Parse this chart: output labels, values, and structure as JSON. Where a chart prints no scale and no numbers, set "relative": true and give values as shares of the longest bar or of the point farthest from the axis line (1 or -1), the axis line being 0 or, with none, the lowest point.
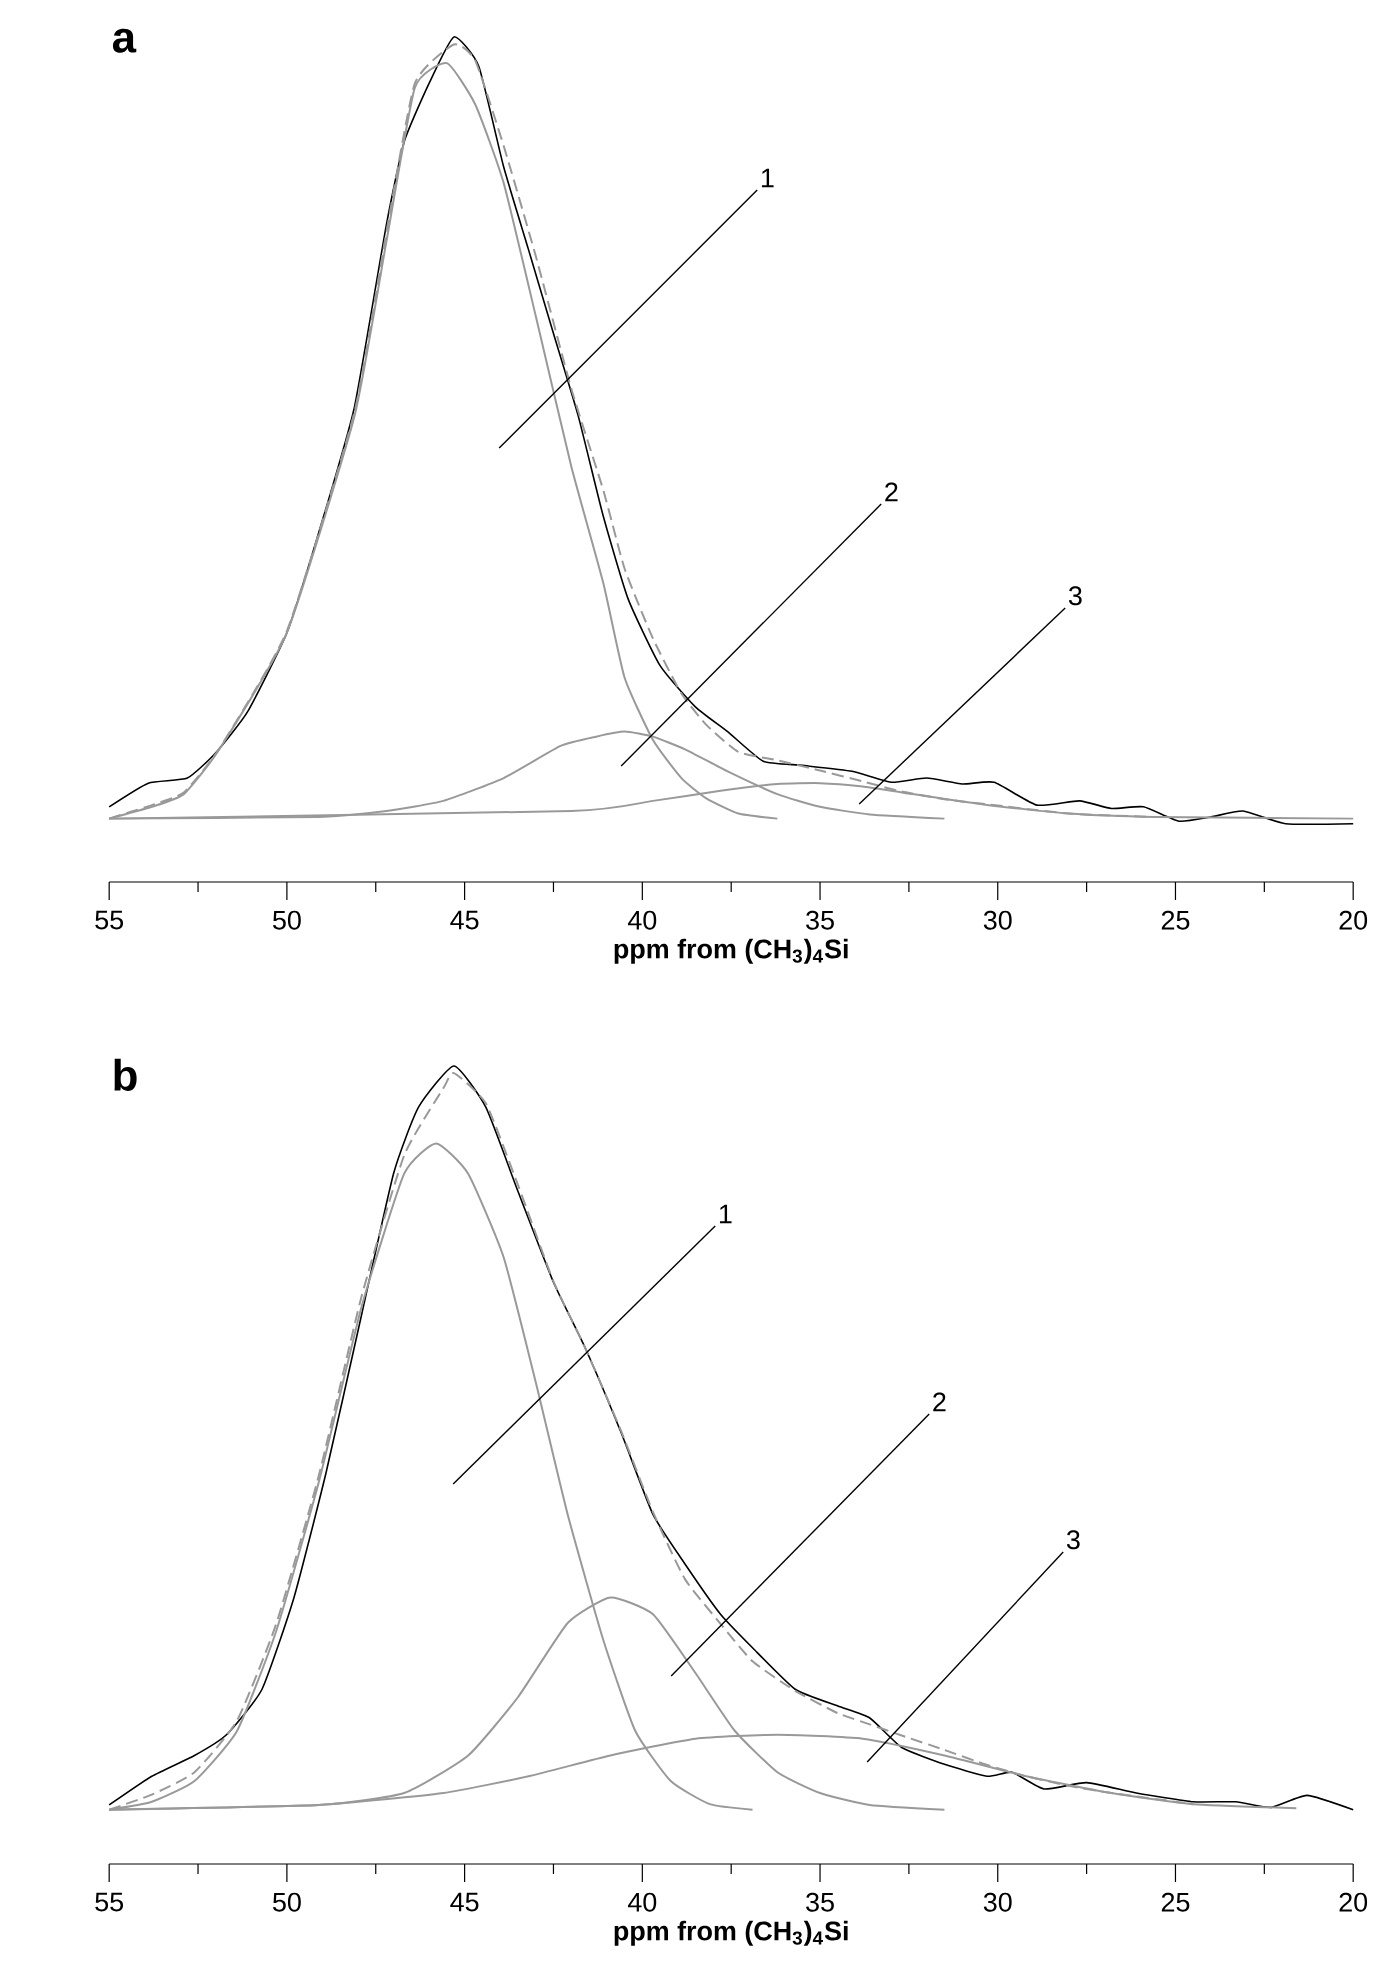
{
  "chart_data": [
    {
      "type": "line",
      "title": "a",
      "xlabel": "ppm from (CH$_{3}$)$_{4}$Si",
      "relative": true,
      "xlim": [
        55,
        20
      ],
      "xticks": [
        55,
        50,
        45,
        40,
        35,
        30,
        25,
        20
      ],
      "grid": false,
      "series": [
        {
          "color": "#000000",
          "x": [
            55,
            53.9,
            52.8,
            52.0,
            51.1,
            50.0,
            49.1,
            48.1,
            47.2,
            46.7,
            46.0,
            45.3,
            44.6,
            43.9,
            43.2,
            42.5,
            41.8,
            41.1,
            40.4,
            39.5,
            38.5,
            37.6,
            36.6,
            35.5,
            34.1,
            33.0,
            32.0,
            31.0,
            30.1,
            28.9,
            27.7,
            26.8,
            25.9,
            24.9,
            24.0,
            23.1,
            21.9,
            20.0
          ],
          "values": [
            0.089,
            0.117,
            0.123,
            0.153,
            0.202,
            0.295,
            0.414,
            0.562,
            0.778,
            0.876,
            0.945,
            1.0,
            0.965,
            0.846,
            0.748,
            0.649,
            0.551,
            0.433,
            0.335,
            0.256,
            0.207,
            0.178,
            0.143,
            0.138,
            0.131,
            0.118,
            0.123,
            0.116,
            0.118,
            0.091,
            0.096,
            0.087,
            0.089,
            0.072,
            0.077,
            0.084,
            0.069,
            0.069
          ]
        },
        {
          "color": "#999999",
          "line_style": "dashed",
          "x": [
            55,
            53.8,
            52.9,
            51.9,
            50,
            48.1,
            47.2,
            46.4,
            45.3,
            44.7,
            43.9,
            43,
            42,
            41.1,
            40.5,
            39.7,
            38.9,
            38.2,
            37.3,
            36.2,
            35,
            33.8,
            32.7,
            31.5,
            30.3,
            28,
            25.6
          ],
          "values": [
            0.075,
            0.091,
            0.106,
            0.158,
            0.297,
            0.556,
            0.769,
            0.945,
            0.991,
            0.972,
            0.871,
            0.741,
            0.584,
            0.464,
            0.371,
            0.288,
            0.223,
            0.186,
            0.154,
            0.144,
            0.132,
            0.119,
            0.107,
            0.098,
            0.092,
            0.081,
            0.077
          ]
        },
        {
          "color": "#999999",
          "x": [
            55,
            53.8,
            52.9,
            51.9,
            50,
            48.1,
            47.2,
            46.4,
            45.5,
            44.7,
            43.9,
            43.0,
            42.0,
            41.1,
            40.5,
            39.7,
            38.9,
            38.2,
            37.3,
            36.2
          ],
          "values": [
            0.075,
            0.089,
            0.104,
            0.157,
            0.295,
            0.551,
            0.758,
            0.94,
            0.969,
            0.92,
            0.827,
            0.67,
            0.492,
            0.354,
            0.242,
            0.168,
            0.123,
            0.099,
            0.081,
            0.075
          ]
        },
        {
          "color": "#999999",
          "x": [
            55,
            49.1,
            47.2,
            45.6,
            43.9,
            42.3,
            41.3,
            40.5,
            39.7,
            38.8,
            37.6,
            36.2,
            35.0,
            33.6,
            31.5
          ],
          "values": [
            0.075,
            0.077,
            0.084,
            0.096,
            0.123,
            0.161,
            0.172,
            0.178,
            0.172,
            0.157,
            0.131,
            0.104,
            0.089,
            0.08,
            0.075
          ]
        },
        {
          "color": "#999999",
          "x": [
            55,
            42.0,
            39.7,
            37.8,
            36.2,
            35.0,
            33.8,
            32.7,
            30.3,
            28.0,
            25.6,
            20
          ],
          "values": [
            0.075,
            0.084,
            0.096,
            0.108,
            0.116,
            0.117,
            0.113,
            0.106,
            0.091,
            0.081,
            0.077,
            0.075
          ]
        }
      ],
      "annotations": [
        "1",
        "2",
        "3"
      ]
    },
    {
      "type": "line",
      "title": "b",
      "xlabel": "ppm from (CH$_{3}$)$_{4}$Si",
      "relative": true,
      "xlim": [
        55,
        20
      ],
      "xticks": [
        55,
        50,
        45,
        40,
        35,
        30,
        25,
        20
      ],
      "grid": false,
      "series": [
        {
          "color": "#000000",
          "x": [
            55,
            53.8,
            52.6,
            51.7,
            50.7,
            49.8,
            48.9,
            47.9,
            47.0,
            46.3,
            45.3,
            44.4,
            43.5,
            42.5,
            41.6,
            40.6,
            39.7,
            38.8,
            37.8,
            36.9,
            35.7,
            34.5,
            33.6,
            32.7,
            31.5,
            30.3,
            29.6,
            28.7,
            27.5,
            26.1,
            24.5,
            23.3,
            22.3,
            21.3,
            20
          ],
          "values": [
            0.074,
            0.11,
            0.136,
            0.162,
            0.219,
            0.334,
            0.49,
            0.688,
            0.865,
            0.948,
            1.0,
            0.948,
            0.843,
            0.729,
            0.646,
            0.541,
            0.438,
            0.376,
            0.313,
            0.271,
            0.219,
            0.198,
            0.183,
            0.146,
            0.125,
            0.11,
            0.115,
            0.094,
            0.102,
            0.089,
            0.078,
            0.078,
            0.071,
            0.086,
            0.068
          ]
        },
        {
          "color": "#999999",
          "line_style": "dashed",
          "x": [
            55,
            53.8,
            52.6,
            51.4,
            50.3,
            49.1,
            47.9,
            46.7,
            45.6,
            45.3,
            44.4,
            43.5,
            42.5,
            41.6,
            40.6,
            39.7,
            38.8,
            37.8,
            36.9,
            35.7,
            34.5,
            33.6,
            32.7,
            31.5,
            30.3,
            29.2,
            28,
            26.8,
            24.5
          ],
          "values": [
            0.068,
            0.087,
            0.115,
            0.18,
            0.301,
            0.487,
            0.711,
            0.888,
            0.972,
            0.991,
            0.953,
            0.851,
            0.73,
            0.646,
            0.543,
            0.441,
            0.357,
            0.301,
            0.254,
            0.217,
            0.189,
            0.175,
            0.161,
            0.143,
            0.124,
            0.11,
            0.098,
            0.089,
            0.075
          ]
        },
        {
          "color": "#999999",
          "x": [
            55,
            53.8,
            52.6,
            51.4,
            50.3,
            49.1,
            47.9,
            46.7,
            45.8,
            44.9,
            43.9,
            43.0,
            42.1,
            41.1,
            40.2,
            39.2,
            38.1,
            36.9
          ],
          "values": [
            0.068,
            0.078,
            0.104,
            0.167,
            0.292,
            0.479,
            0.698,
            0.865,
            0.903,
            0.865,
            0.76,
            0.604,
            0.438,
            0.281,
            0.167,
            0.104,
            0.075,
            0.068
          ]
        },
        {
          "color": "#999999",
          "x": [
            55,
            49.1,
            46.7,
            44.9,
            43.5,
            42.1,
            40.9,
            39.7,
            38.5,
            37.4,
            36.2,
            35.0,
            33.6,
            31.5
          ],
          "values": [
            0.068,
            0.074,
            0.089,
            0.136,
            0.209,
            0.302,
            0.334,
            0.313,
            0.239,
            0.167,
            0.115,
            0.089,
            0.074,
            0.068
          ]
        },
        {
          "color": "#999999",
          "x": [
            55,
            49.1,
            45.6,
            43.2,
            40.9,
            38.5,
            36.2,
            33.8,
            31.5,
            29.2,
            26.8,
            24.5,
            21.6
          ],
          "values": [
            0.068,
            0.074,
            0.089,
            0.11,
            0.136,
            0.157,
            0.162,
            0.157,
            0.136,
            0.11,
            0.089,
            0.075,
            0.07
          ]
        }
      ],
      "annotations": [
        "1",
        "2",
        "3"
      ]
    }
  ]
}
